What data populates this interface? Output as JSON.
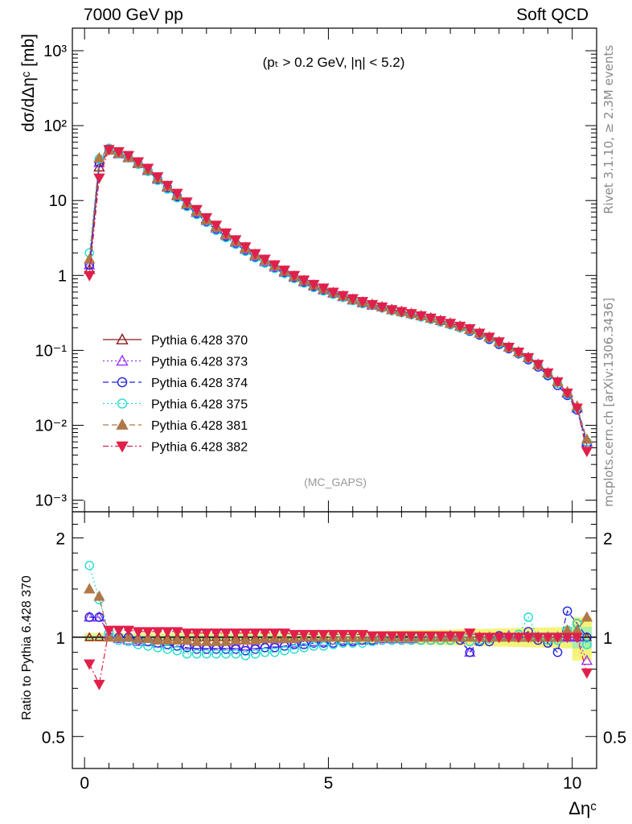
{
  "header": {
    "left": "7000 GeV pp",
    "right": "Soft QCD"
  },
  "side_labels": {
    "rivet": "Rivet 3.1.10, ≥ 2.3M events",
    "mcplots": "mcplots.cern.ch [arXiv:1306.3436]"
  },
  "main_plot": {
    "ylabel": "dσ/dΔηᶜ [mb]",
    "cut_label": "(pₜ > 0.2 GeV, |η| < 5.2)",
    "analysis_label": "(MC_GAPS)",
    "y_tick_labels": [
      "10⁻³",
      "10⁻²",
      "10⁻¹",
      "1",
      "10",
      "10²",
      "10³"
    ]
  },
  "ratio_plot": {
    "ylabel": "Ratio to Pythia 6.428 370",
    "y_tick_labels": [
      "0.5",
      "1",
      "2"
    ],
    "x_tick_labels": [
      "0",
      "5",
      "10"
    ],
    "xlabel": "Δηᶜ"
  },
  "chart_data": [
    {
      "type": "line",
      "panel": "main",
      "yscale": "log",
      "xlim": [
        -0.25,
        10.5
      ],
      "ylim": [
        0.0007,
        2000
      ],
      "grid": false,
      "legend_placement": "middle-left",
      "x": [
        0.1,
        0.3,
        0.5,
        0.7,
        0.9,
        1.1,
        1.3,
        1.5,
        1.7,
        1.9,
        2.1,
        2.3,
        2.5,
        2.7,
        2.9,
        3.1,
        3.3,
        3.5,
        3.7,
        3.9,
        4.1,
        4.3,
        4.5,
        4.7,
        4.9,
        5.1,
        5.3,
        5.5,
        5.7,
        5.9,
        6.1,
        6.3,
        6.5,
        6.7,
        6.9,
        7.1,
        7.3,
        7.5,
        7.7,
        7.9,
        8.1,
        8.3,
        8.5,
        8.7,
        8.9,
        9.1,
        9.3,
        9.5,
        9.7,
        9.9,
        10.1,
        10.3
      ],
      "series": [
        {
          "name": "Pythia 6.428 370",
          "color": "#8b1a1a",
          "marker": "triangle-open",
          "dash": "solid",
          "values": [
            1.2,
            28,
            47,
            43,
            38,
            32,
            26,
            20,
            15.5,
            12,
            9.3,
            7.3,
            5.7,
            4.5,
            3.6,
            2.9,
            2.35,
            1.9,
            1.6,
            1.35,
            1.15,
            0.98,
            0.85,
            0.74,
            0.66,
            0.59,
            0.53,
            0.48,
            0.44,
            0.41,
            0.38,
            0.35,
            0.33,
            0.31,
            0.29,
            0.27,
            0.25,
            0.23,
            0.21,
            0.19,
            0.17,
            0.15,
            0.13,
            0.11,
            0.095,
            0.08,
            0.065,
            0.05,
            0.038,
            0.027,
            0.017,
            0.006
          ]
        },
        {
          "name": "Pythia 6.428 373",
          "color": "#9933ff",
          "marker": "triangle-open",
          "dash": "dotted",
          "values": [
            1.38,
            32,
            48,
            42,
            37.2,
            31,
            25,
            19.2,
            15,
            11.5,
            8.8,
            6.9,
            5.4,
            4.25,
            3.4,
            2.75,
            2.22,
            1.8,
            1.52,
            1.29,
            1.1,
            0.94,
            0.82,
            0.72,
            0.64,
            0.58,
            0.52,
            0.47,
            0.43,
            0.4,
            0.38,
            0.35,
            0.33,
            0.31,
            0.29,
            0.27,
            0.25,
            0.23,
            0.21,
            0.19,
            0.17,
            0.15,
            0.13,
            0.11,
            0.095,
            0.08,
            0.065,
            0.05,
            0.038,
            0.027,
            0.017,
            0.006
          ]
        },
        {
          "name": "Pythia 6.428 374",
          "color": "#2222dd",
          "marker": "circle-open",
          "dash": "dashed",
          "values": [
            1.38,
            32,
            48,
            42.5,
            37.5,
            31,
            25,
            19.2,
            14.8,
            11.3,
            8.6,
            6.7,
            5.2,
            4.1,
            3.3,
            2.65,
            2.15,
            1.75,
            1.48,
            1.26,
            1.08,
            0.93,
            0.81,
            0.71,
            0.63,
            0.57,
            0.51,
            0.47,
            0.43,
            0.4,
            0.37,
            0.34,
            0.32,
            0.3,
            0.28,
            0.26,
            0.24,
            0.22,
            0.2,
            0.18,
            0.16,
            0.14,
            0.12,
            0.105,
            0.09,
            0.075,
            0.06,
            0.046,
            0.034,
            0.025,
            0.016,
            0.0055
          ]
        },
        {
          "name": "Pythia 6.428 375",
          "color": "#22ddcc",
          "marker": "circle-open",
          "dash": "dotted",
          "values": [
            2.0,
            36,
            50,
            42,
            37,
            30.5,
            24.5,
            18.6,
            14.2,
            10.9,
            8.3,
            6.5,
            5.1,
            4.0,
            3.2,
            2.6,
            2.1,
            1.72,
            1.46,
            1.24,
            1.06,
            0.91,
            0.79,
            0.69,
            0.62,
            0.56,
            0.51,
            0.46,
            0.42,
            0.4,
            0.37,
            0.34,
            0.32,
            0.3,
            0.28,
            0.26,
            0.24,
            0.22,
            0.2,
            0.185,
            0.165,
            0.145,
            0.125,
            0.108,
            0.092,
            0.078,
            0.063,
            0.048,
            0.036,
            0.026,
            0.017,
            0.006
          ]
        },
        {
          "name": "Pythia 6.428 381",
          "color": "#b07848",
          "marker": "triangle-filled",
          "dash": "dashed",
          "values": [
            1.65,
            37,
            47,
            43,
            37.5,
            31.5,
            25.5,
            19.7,
            15.2,
            11.7,
            9.0,
            7.1,
            5.5,
            4.4,
            3.5,
            2.85,
            2.3,
            1.87,
            1.58,
            1.34,
            1.14,
            0.97,
            0.85,
            0.74,
            0.66,
            0.59,
            0.53,
            0.48,
            0.44,
            0.41,
            0.38,
            0.35,
            0.33,
            0.31,
            0.29,
            0.27,
            0.25,
            0.23,
            0.21,
            0.19,
            0.17,
            0.15,
            0.13,
            0.11,
            0.095,
            0.08,
            0.064,
            0.05,
            0.038,
            0.028,
            0.018,
            0.0065
          ]
        },
        {
          "name": "Pythia 6.428 382",
          "color": "#e0204a",
          "marker": "triangle-down-filled",
          "dash": "dashdot",
          "values": [
            1.0,
            20,
            48,
            45,
            40,
            33,
            27,
            20.8,
            16,
            12.5,
            9.6,
            7.6,
            5.9,
            4.7,
            3.7,
            3.0,
            2.42,
            1.96,
            1.65,
            1.39,
            1.18,
            1.0,
            0.87,
            0.76,
            0.68,
            0.6,
            0.54,
            0.49,
            0.45,
            0.41,
            0.38,
            0.35,
            0.33,
            0.31,
            0.29,
            0.27,
            0.25,
            0.23,
            0.21,
            0.195,
            0.17,
            0.15,
            0.13,
            0.11,
            0.095,
            0.08,
            0.065,
            0.05,
            0.038,
            0.027,
            0.017,
            0.0045
          ]
        }
      ]
    },
    {
      "type": "line",
      "panel": "ratio",
      "yscale": "log",
      "xlim": [
        -0.25,
        10.5
      ],
      "ylim": [
        0.4,
        2.4
      ],
      "reference_line": 1,
      "x": [
        0.1,
        0.3,
        0.5,
        0.7,
        0.9,
        1.1,
        1.3,
        1.5,
        1.7,
        1.9,
        2.1,
        2.3,
        2.5,
        2.7,
        2.9,
        3.1,
        3.3,
        3.5,
        3.7,
        3.9,
        4.1,
        4.3,
        4.5,
        4.7,
        4.9,
        5.1,
        5.3,
        5.5,
        5.7,
        5.9,
        6.1,
        6.3,
        6.5,
        6.7,
        6.9,
        7.1,
        7.3,
        7.5,
        7.7,
        7.9,
        8.1,
        8.3,
        8.5,
        8.7,
        8.9,
        9.1,
        9.3,
        9.5,
        9.7,
        9.9,
        10.1,
        10.3
      ],
      "series": [
        {
          "name": "Pythia 6.428 373",
          "values": [
            1.15,
            1.15,
            1.02,
            0.99,
            0.98,
            0.97,
            0.97,
            0.96,
            0.97,
            0.96,
            0.95,
            0.95,
            0.95,
            0.95,
            0.95,
            0.95,
            0.94,
            0.95,
            0.95,
            0.96,
            0.96,
            0.96,
            0.97,
            0.97,
            0.97,
            0.98,
            0.98,
            0.98,
            0.98,
            0.98,
            0.99,
            0.99,
            0.99,
            0.99,
            1.0,
            1.0,
            1.0,
            1.01,
            1.0,
            0.9,
            1.0,
            1.0,
            1.0,
            1.01,
            1.0,
            1.0,
            1.0,
            1.0,
            1.0,
            1.0,
            1.0,
            0.85
          ]
        },
        {
          "name": "Pythia 6.428 374",
          "values": [
            1.15,
            1.15,
            1.03,
            1.0,
            1.0,
            0.98,
            0.97,
            0.96,
            0.95,
            0.94,
            0.93,
            0.92,
            0.92,
            0.92,
            0.92,
            0.92,
            0.91,
            0.92,
            0.93,
            0.93,
            0.94,
            0.95,
            0.95,
            0.96,
            0.96,
            0.96,
            0.97,
            0.97,
            0.98,
            0.98,
            0.98,
            0.98,
            0.98,
            0.98,
            0.98,
            0.98,
            0.98,
            0.98,
            0.98,
            0.9,
            0.97,
            0.97,
            1.01,
            1.0,
            1.0,
            1.04,
            0.98,
            0.96,
            0.9,
            1.2,
            1.1,
            1.0
          ]
        },
        {
          "name": "Pythia 6.428 375",
          "values": [
            1.65,
            1.3,
            1.03,
            0.98,
            0.97,
            0.95,
            0.94,
            0.93,
            0.92,
            0.91,
            0.89,
            0.89,
            0.89,
            0.89,
            0.89,
            0.89,
            0.88,
            0.89,
            0.9,
            0.9,
            0.91,
            0.92,
            0.93,
            0.94,
            0.94,
            0.95,
            0.96,
            0.96,
            0.96,
            0.97,
            0.98,
            0.98,
            0.98,
            0.98,
            0.98,
            0.98,
            0.98,
            0.98,
            1.0,
            0.97,
            0.98,
            0.99,
            1.0,
            1.0,
            1.02,
            1.15,
            1.0,
            0.98,
            0.98,
            1.05,
            1.1,
            0.95
          ]
        },
        {
          "name": "Pythia 6.428 381",
          "values": [
            1.4,
            1.33,
            1.0,
            1.0,
            1.0,
            0.99,
            0.99,
            0.98,
            0.98,
            0.98,
            0.98,
            0.97,
            0.97,
            0.97,
            0.97,
            0.98,
            0.98,
            0.98,
            0.99,
            0.99,
            0.99,
            0.99,
            1.0,
            1.0,
            1.0,
            1.0,
            1.0,
            1.0,
            1.0,
            1.0,
            1.0,
            1.0,
            1.0,
            1.0,
            1.0,
            1.0,
            1.0,
            1.0,
            1.0,
            1.0,
            1.0,
            1.0,
            1.0,
            1.0,
            1.0,
            1.0,
            1.0,
            1.0,
            1.0,
            1.05,
            1.05,
            1.15
          ]
        },
        {
          "name": "Pythia 6.428 382",
          "values": [
            0.83,
            0.72,
            1.05,
            1.05,
            1.05,
            1.04,
            1.04,
            1.04,
            1.04,
            1.04,
            1.03,
            1.03,
            1.03,
            1.03,
            1.03,
            1.03,
            1.03,
            1.03,
            1.03,
            1.03,
            1.03,
            1.02,
            1.02,
            1.02,
            1.02,
            1.02,
            1.02,
            1.02,
            1.02,
            1.01,
            1.01,
            1.01,
            1.01,
            1.01,
            1.01,
            1.01,
            1.01,
            1.01,
            1.01,
            1.03,
            1.0,
            1.0,
            1.0,
            1.0,
            1.0,
            1.0,
            1.0,
            1.0,
            1.0,
            1.0,
            1.0,
            0.78
          ]
        }
      ]
    }
  ]
}
